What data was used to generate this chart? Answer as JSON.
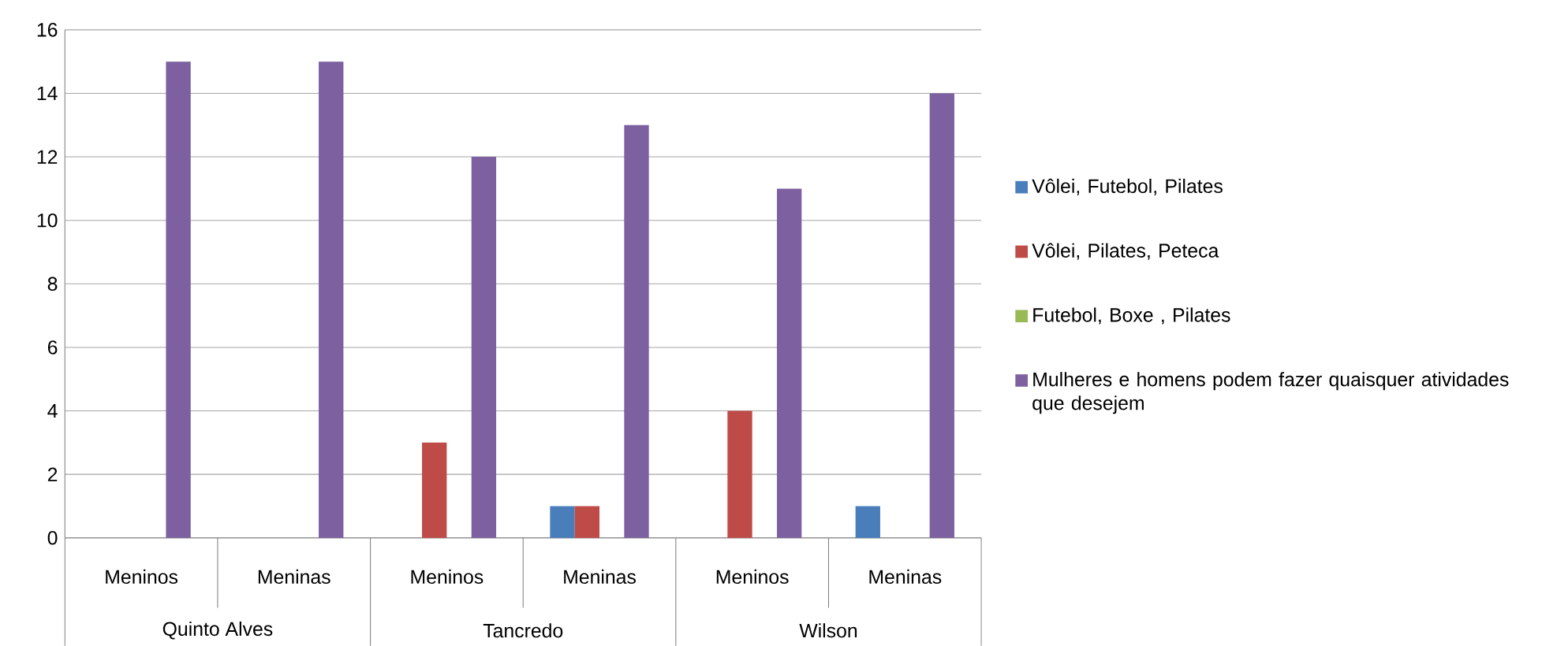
{
  "chart_data": {
    "type": "bar",
    "categories": [
      "Meninos",
      "Meninas",
      "Meninos",
      "Meninas",
      "Meninos",
      "Meninas"
    ],
    "series": [
      {
        "name": "Vôlei, Futebol, Pilates",
        "color": "#4a7ebb",
        "values": [
          0,
          0,
          0,
          1,
          0,
          1
        ]
      },
      {
        "name": "Vôlei, Pilates, Peteca",
        "color": "#be4b48",
        "values": [
          0,
          0,
          3,
          1,
          4,
          0
        ]
      },
      {
        "name": "Futebol, Boxe , Pilates",
        "color": "#98b954",
        "values": [
          0,
          0,
          0,
          0,
          0,
          0
        ]
      },
      {
        "name": "Mulheres e homens podem fazer quaisquer atividades que desejem",
        "color": "#7d60a0",
        "values": [
          15,
          15,
          12,
          13,
          11,
          14
        ]
      }
    ],
    "annotations": [
      "Quinto Alves",
      "Tancredo",
      "Wilson"
    ],
    "ylim": [
      0,
      16
    ],
    "yticks": [
      0,
      2,
      4,
      6,
      8,
      10,
      12,
      14,
      16
    ],
    "grid": "y",
    "legend": "right"
  }
}
